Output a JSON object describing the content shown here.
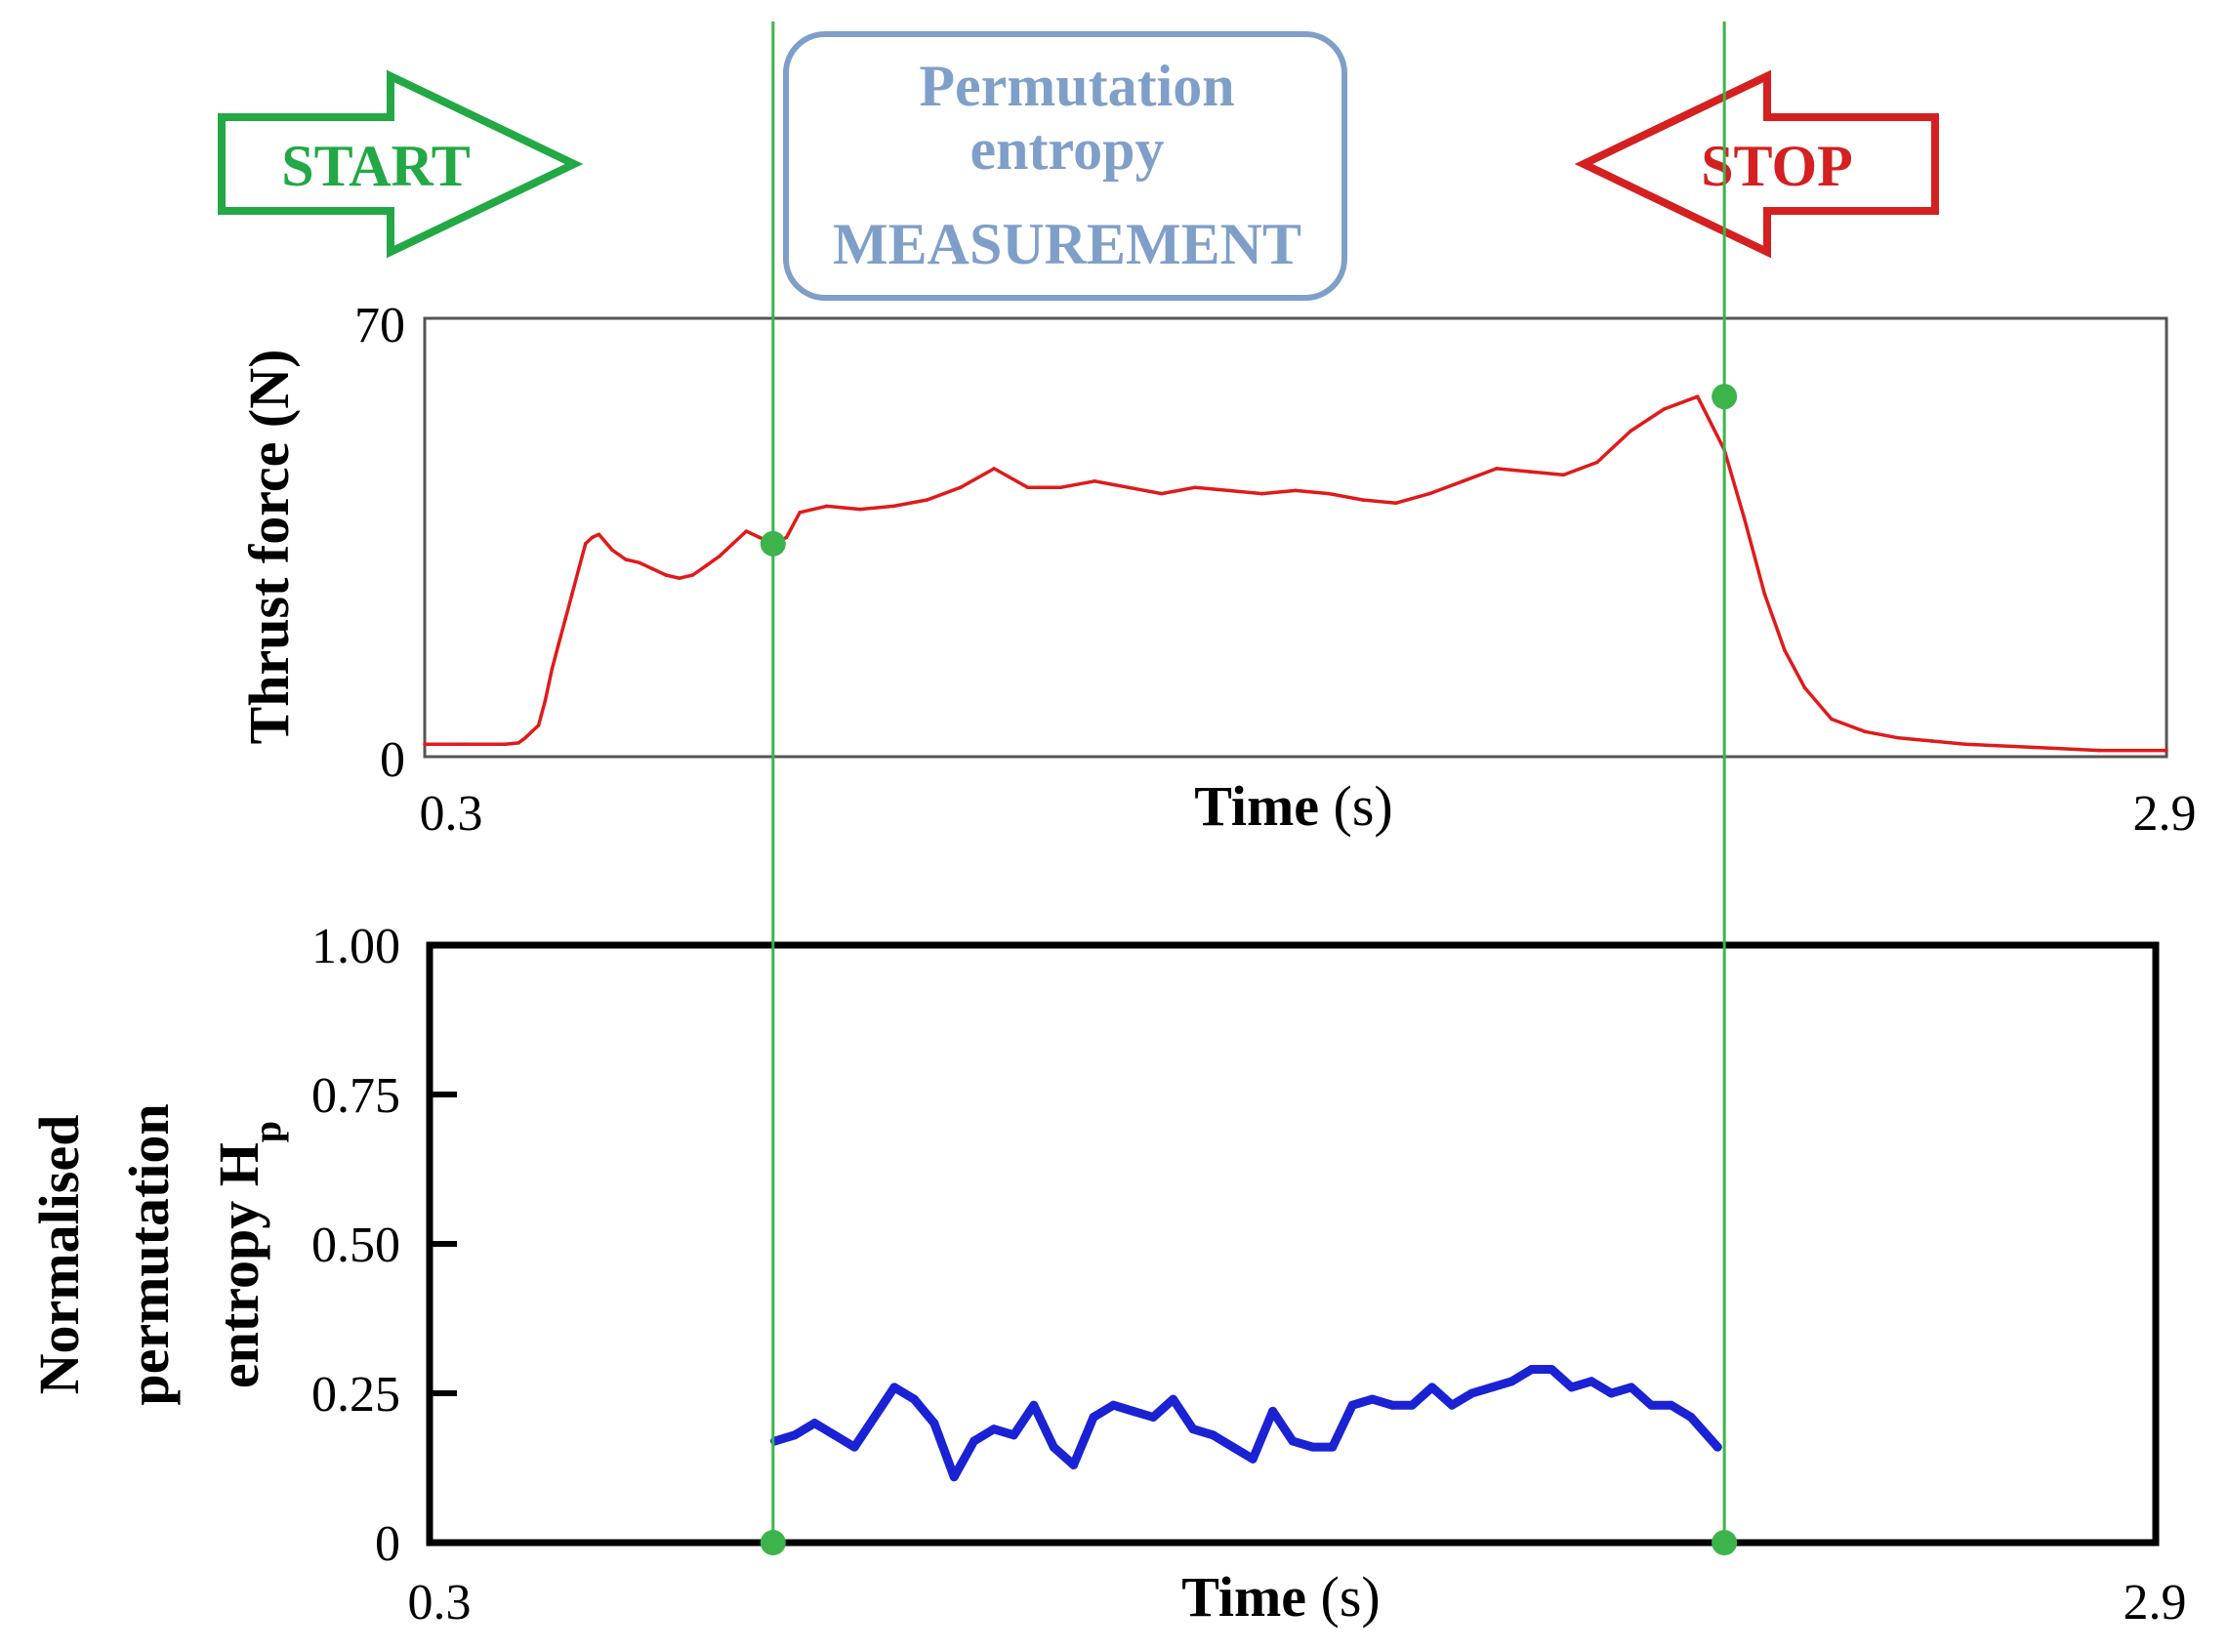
{
  "banners": {
    "start_label": "START",
    "stop_label": "STOP",
    "box_line1": "Permutation",
    "box_line2": "entropy",
    "box_line3": "MEASUREMENT",
    "start_color": "#22a844",
    "stop_color": "#d42020",
    "box_color": "#7f9fc9"
  },
  "markers": {
    "start_time": 0.82,
    "stop_time": 2.24,
    "line_color": "#3cb44b"
  },
  "chart_data": [
    {
      "type": "line",
      "name": "thrust-force",
      "title": "",
      "xlabel": "Time",
      "xlabel_unit": "(s)",
      "ylabel": "Thrust force (N)",
      "xlim": [
        0.3,
        2.9
      ],
      "ylim": [
        0,
        70
      ],
      "x_tick_labels": [
        "0.3",
        "2.9"
      ],
      "y_tick_labels": [
        "0",
        "70"
      ],
      "color": "#e01a1a",
      "series": [
        {
          "name": "Thrust force",
          "x": [
            0.3,
            0.36,
            0.42,
            0.44,
            0.45,
            0.47,
            0.48,
            0.49,
            0.5,
            0.51,
            0.52,
            0.53,
            0.54,
            0.55,
            0.56,
            0.58,
            0.6,
            0.62,
            0.64,
            0.66,
            0.68,
            0.7,
            0.72,
            0.74,
            0.76,
            0.78,
            0.8,
            0.82,
            0.84,
            0.86,
            0.9,
            0.95,
            1.0,
            1.05,
            1.1,
            1.15,
            1.2,
            1.25,
            1.3,
            1.35,
            1.4,
            1.45,
            1.5,
            1.55,
            1.6,
            1.65,
            1.7,
            1.75,
            1.8,
            1.85,
            1.9,
            1.95,
            2.0,
            2.05,
            2.1,
            2.15,
            2.2,
            2.24,
            2.27,
            2.3,
            2.33,
            2.36,
            2.4,
            2.45,
            2.5,
            2.55,
            2.6,
            2.7,
            2.8,
            2.9
          ],
          "values": [
            2,
            2,
            2,
            2.2,
            3,
            5,
            9,
            14,
            18,
            22,
            26,
            30,
            34,
            35,
            35.5,
            33,
            31.5,
            31,
            30,
            29,
            28.5,
            29,
            30.5,
            32,
            34,
            36,
            35,
            34,
            35,
            39,
            40,
            39.5,
            40,
            41,
            43,
            46,
            43,
            43,
            44,
            43,
            42,
            43,
            42.5,
            42,
            42.5,
            42,
            41,
            40.5,
            42,
            44,
            46,
            45.5,
            45,
            47,
            52,
            55.5,
            57.5,
            49,
            38,
            26,
            17,
            11,
            6,
            4,
            3,
            2.5,
            2,
            1.5,
            1,
            1
          ]
        }
      ]
    },
    {
      "type": "line",
      "name": "normalised-permutation-entropy",
      "title": "",
      "xlabel": "Time",
      "xlabel_unit": "(s)",
      "ylabel_line1": "Normalised",
      "ylabel_line2": "permutation",
      "ylabel_line3": "entropy H",
      "ylabel_subscript": "p",
      "xlim": [
        0.3,
        2.9
      ],
      "ylim": [
        0,
        1
      ],
      "x_tick_labels": [
        "0.3",
        "2.9"
      ],
      "y_ticks": [
        0,
        0.25,
        0.5,
        0.75,
        1.0
      ],
      "y_tick_labels": [
        "0",
        "0.25",
        "0.50",
        "0.75",
        "1.00"
      ],
      "color": "#1a22d4",
      "series": [
        {
          "name": "Hp",
          "x": [
            0.82,
            0.85,
            0.88,
            0.91,
            0.94,
            0.97,
            1.0,
            1.03,
            1.06,
            1.09,
            1.12,
            1.15,
            1.18,
            1.21,
            1.24,
            1.27,
            1.3,
            1.33,
            1.36,
            1.39,
            1.42,
            1.45,
            1.48,
            1.51,
            1.54,
            1.57,
            1.6,
            1.63,
            1.66,
            1.69,
            1.72,
            1.75,
            1.78,
            1.81,
            1.84,
            1.87,
            1.9,
            1.93,
            1.96,
            1.99,
            2.02,
            2.05,
            2.08,
            2.11,
            2.14,
            2.17,
            2.2,
            2.24
          ],
          "values": [
            0.17,
            0.18,
            0.2,
            0.18,
            0.16,
            0.21,
            0.26,
            0.24,
            0.2,
            0.11,
            0.17,
            0.19,
            0.18,
            0.23,
            0.16,
            0.13,
            0.21,
            0.23,
            0.22,
            0.21,
            0.24,
            0.19,
            0.18,
            0.16,
            0.14,
            0.22,
            0.17,
            0.16,
            0.16,
            0.23,
            0.24,
            0.23,
            0.23,
            0.26,
            0.23,
            0.25,
            0.26,
            0.27,
            0.29,
            0.29,
            0.26,
            0.27,
            0.25,
            0.26,
            0.23,
            0.23,
            0.21,
            0.16
          ]
        }
      ]
    }
  ]
}
